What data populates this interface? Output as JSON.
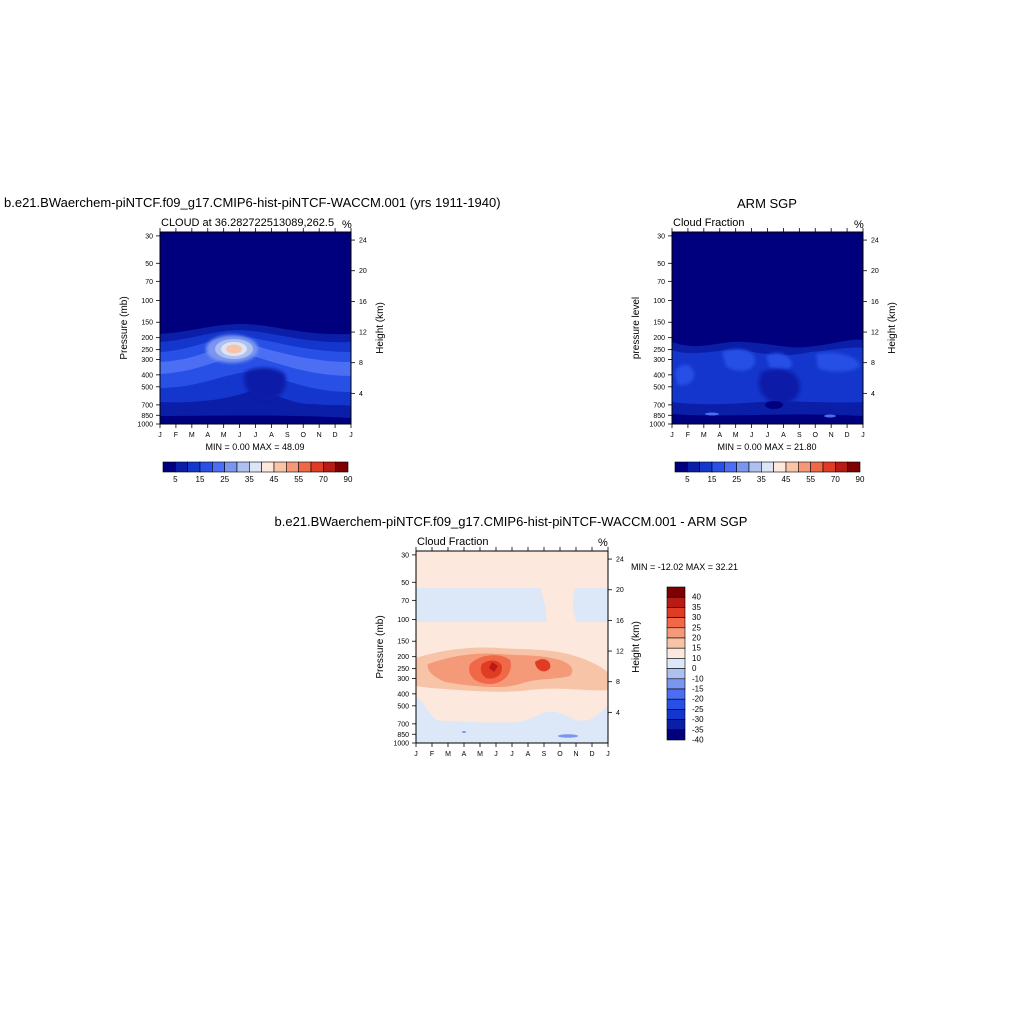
{
  "months": [
    "J",
    "F",
    "M",
    "A",
    "M",
    "J",
    "J",
    "A",
    "S",
    "O",
    "N",
    "D",
    "J"
  ],
  "pressure_ticks": [
    "30",
    "50",
    "70",
    "100",
    "150",
    "200",
    "250",
    "300",
    "400",
    "500",
    "700",
    "850",
    "1000"
  ],
  "height_ticks": [
    "24",
    "20",
    "16",
    "12",
    "8",
    "4"
  ],
  "colors": {
    "seq": [
      "#00007f",
      "#0a1ea8",
      "#1436cc",
      "#2850e6",
      "#4b6ef2",
      "#7a96f0",
      "#aec0f0",
      "#dce4f6",
      "#fce8dc",
      "#f8c4a8",
      "#f49a78",
      "#f06848",
      "#e03c24",
      "#b81a14",
      "#7f0000"
    ],
    "diff": [
      "#00007f",
      "#0a1ea8",
      "#1436cc",
      "#2850e6",
      "#4b6ef2",
      "#7a96f0",
      "#aec0f0",
      "#dce8f8",
      "#fce8dc",
      "#f8c4a8",
      "#f49a78",
      "#f06848",
      "#e03c24",
      "#b81a14",
      "#7f0000"
    ]
  },
  "panel_model": {
    "title": "b.e21.BWaerchem-piNTCF.f09_g17.CMIP6-hist-piNTCF-WACCM.001 (yrs 1911-1940)",
    "left_label": "CLOUD at 36.282722513089,262.5",
    "right_label": "%",
    "ylabel": "Pressure (mb)",
    "ylabel_right": "Height (km)",
    "stats": "MIN =   0.00 MAX =  48.09"
  },
  "panel_obs": {
    "title": "ARM SGP",
    "left_label": "Cloud Fraction",
    "right_label": "%",
    "ylabel": "pressure level",
    "ylabel_right": "Height (km)",
    "stats": "MIN =   0.00 MAX =  21.80"
  },
  "panel_diff": {
    "title": "b.e21.BWaerchem-piNTCF.f09_g17.CMIP6-hist-piNTCF-WACCM.001 - ARM SGP",
    "left_label": "Cloud Fraction",
    "right_label": "%",
    "ylabel": "Pressure (mb)",
    "ylabel_right": "Height (km)",
    "stats": "MIN = -12.02 MAX =  32.21"
  },
  "colorbar_seq_labels": [
    "5",
    "15",
    "25",
    "35",
    "45",
    "55",
    "70",
    "90"
  ],
  "colorbar_diff_labels": [
    "40",
    "35",
    "30",
    "25",
    "20",
    "15",
    "10",
    "0",
    "-10",
    "-15",
    "-20",
    "-25",
    "-30",
    "-35",
    "-40"
  ],
  "chart_data": [
    {
      "type": "heatmap",
      "title": "b.e21.BWaerchem-piNTCF.f09_g17.CMIP6-hist-piNTCF-WACCM.001 (yrs 1911-1940)",
      "subtitle": "CLOUD at 36.282722513089,262.5",
      "xlabel": "",
      "ylabel": "Pressure (mb)",
      "ylabel_right": "Height (km)",
      "units": "%",
      "x": [
        "J",
        "F",
        "M",
        "A",
        "M",
        "J",
        "J",
        "A",
        "S",
        "O",
        "N",
        "D",
        "J"
      ],
      "y_pressure": [
        30,
        50,
        70,
        100,
        150,
        200,
        250,
        300,
        400,
        500,
        700,
        850,
        1000
      ],
      "min": 0.0,
      "max": 48.09,
      "peak": {
        "month": "M-J",
        "pressure": 220,
        "value": 48.09
      }
    },
    {
      "type": "heatmap",
      "title": "ARM SGP",
      "subtitle": "Cloud Fraction",
      "xlabel": "",
      "ylabel": "pressure level",
      "ylabel_right": "Height (km)",
      "units": "%",
      "x": [
        "J",
        "F",
        "M",
        "A",
        "M",
        "J",
        "J",
        "A",
        "S",
        "O",
        "N",
        "D",
        "J"
      ],
      "y_pressure": [
        30,
        50,
        70,
        100,
        150,
        200,
        250,
        300,
        400,
        500,
        700,
        850,
        1000
      ],
      "min": 0.0,
      "max": 21.8
    },
    {
      "type": "heatmap",
      "title": "b.e21.BWaerchem-piNTCF.f09_g17.CMIP6-hist-piNTCF-WACCM.001 - ARM SGP",
      "subtitle": "Cloud Fraction",
      "xlabel": "",
      "ylabel": "Pressure (mb)",
      "ylabel_right": "Height (km)",
      "units": "%",
      "x": [
        "J",
        "F",
        "M",
        "A",
        "M",
        "J",
        "J",
        "A",
        "S",
        "O",
        "N",
        "D",
        "J"
      ],
      "y_pressure": [
        30,
        50,
        70,
        100,
        150,
        200,
        250,
        300,
        400,
        500,
        700,
        850,
        1000
      ],
      "min": -12.02,
      "max": 32.21,
      "peak": {
        "month": "J",
        "pressure": 230,
        "value": 32.21
      }
    }
  ]
}
